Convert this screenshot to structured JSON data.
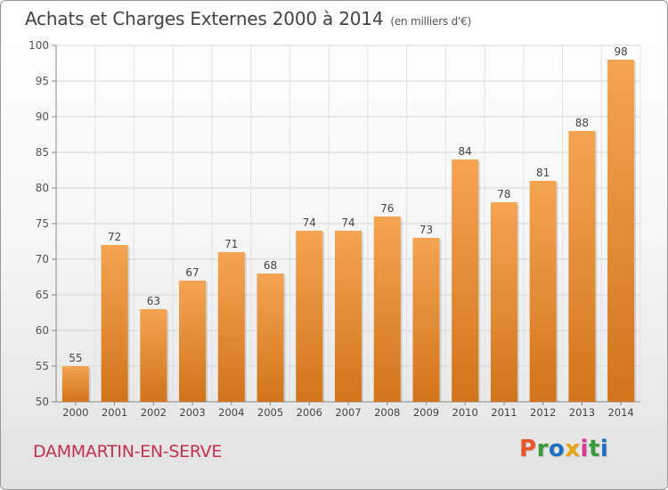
{
  "header": {
    "title": "Achats et Charges Externes 2000 à 2014",
    "subtitle": "(en milliers d'€)"
  },
  "footer": {
    "commune": "DAMMARTIN-EN-SERVE",
    "logo_letters": [
      "P",
      "r",
      "o",
      "x",
      "i",
      "t",
      "i"
    ],
    "logo_colors": [
      "#e8562a",
      "#3a9a3a",
      "#1e6fc2",
      "#e8a317",
      "#d63a8a",
      "#3a9a3a",
      "#1e6fc2"
    ]
  },
  "chart_data": {
    "type": "bar",
    "title": "Achats et Charges Externes 2000 à 2014",
    "subtitle": "(en milliers d'€)",
    "categories": [
      "2000",
      "2001",
      "2002",
      "2003",
      "2004",
      "2005",
      "2006",
      "2007",
      "2008",
      "2009",
      "2010",
      "2011",
      "2012",
      "2013",
      "2014"
    ],
    "values": [
      55,
      72,
      63,
      67,
      71,
      68,
      74,
      74,
      76,
      73,
      84,
      78,
      81,
      88,
      98
    ],
    "ylim": [
      50,
      100
    ],
    "yticks": [
      50,
      55,
      60,
      65,
      70,
      75,
      80,
      85,
      90,
      95,
      100
    ],
    "grid": true,
    "bar_color_top": "#f5a452",
    "bar_color_bottom": "#d2741b",
    "xlabel": "",
    "ylabel": ""
  }
}
